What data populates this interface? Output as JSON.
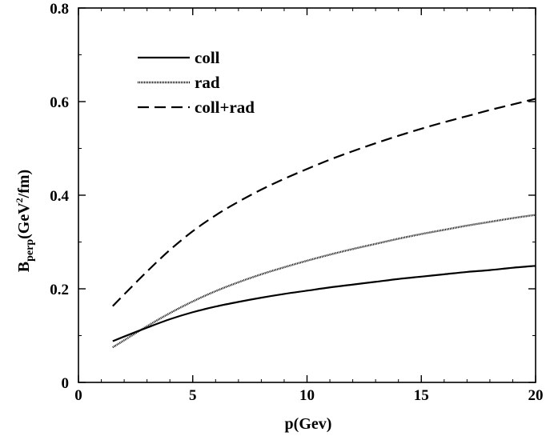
{
  "chart_data": {
    "type": "line",
    "title": "",
    "xlabel": "p(Gev)",
    "ylabel": {
      "main": "B",
      "sub": "perp",
      "unit_prefix": "(GeV",
      "unit_sup": "2",
      "unit_suffix": "/fm)"
    },
    "xlim": [
      0,
      20
    ],
    "ylim": [
      0,
      0.8
    ],
    "xticks": [
      0,
      5,
      10,
      15,
      20
    ],
    "yticks": [
      0,
      0.2,
      0.4,
      0.6,
      0.8
    ],
    "xtick_labels": [
      "0",
      "5",
      "10",
      "15",
      "20"
    ],
    "ytick_labels": [
      "0",
      "0.2",
      "0.4",
      "0.6",
      "0.8"
    ],
    "grid": false,
    "legend_position": "top-left",
    "x": [
      1.5,
      2,
      3,
      4,
      5,
      6,
      7,
      8,
      9,
      10,
      11,
      12,
      13,
      14,
      15,
      16,
      17,
      18,
      19,
      20
    ],
    "series": [
      {
        "name": "coll",
        "style": "solid",
        "values": [
          0.088,
          0.098,
          0.117,
          0.135,
          0.15,
          0.162,
          0.172,
          0.181,
          0.189,
          0.196,
          0.203,
          0.209,
          0.215,
          0.221,
          0.226,
          0.231,
          0.236,
          0.24,
          0.245,
          0.249
        ]
      },
      {
        "name": "rad",
        "style": "dotted",
        "values": [
          0.075,
          0.09,
          0.12,
          0.148,
          0.173,
          0.195,
          0.214,
          0.231,
          0.246,
          0.26,
          0.273,
          0.285,
          0.296,
          0.307,
          0.317,
          0.326,
          0.335,
          0.343,
          0.351,
          0.358
        ]
      },
      {
        "name": "coll+rad",
        "style": "dashed",
        "values": [
          0.163,
          0.188,
          0.237,
          0.283,
          0.323,
          0.357,
          0.386,
          0.412,
          0.435,
          0.456,
          0.476,
          0.494,
          0.511,
          0.527,
          0.542,
          0.556,
          0.569,
          0.582,
          0.594,
          0.606
        ]
      }
    ],
    "colors": {
      "line": "#000000",
      "background": "#ffffff"
    }
  }
}
